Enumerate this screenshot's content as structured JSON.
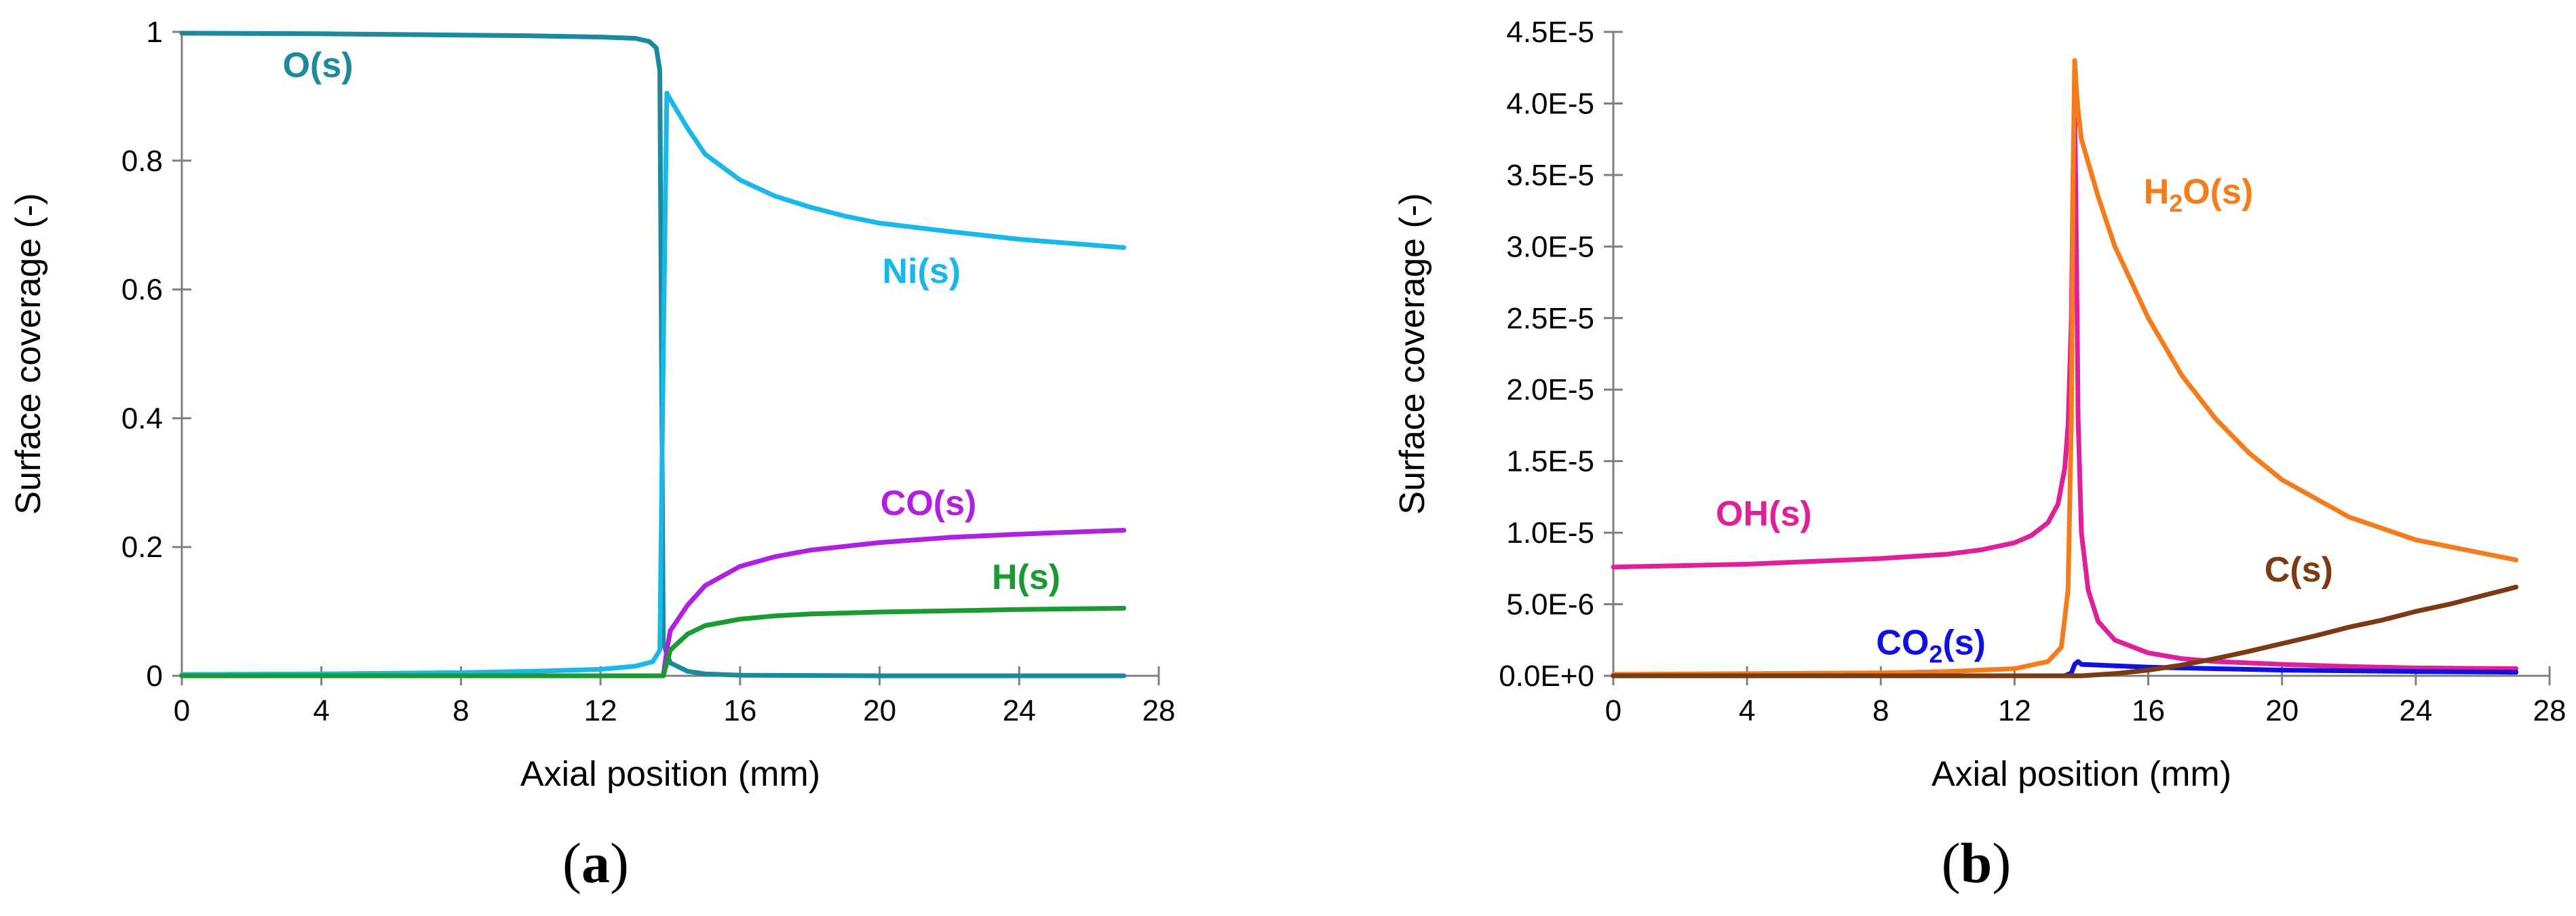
{
  "chart_data": [
    {
      "type": "line",
      "panel": "a",
      "panel_label": "a",
      "xlabel": "Axial position (mm)",
      "ylabel": "Surface coverage (-)",
      "xlim": [
        0,
        28
      ],
      "ylim": [
        0,
        1
      ],
      "xticks": [
        0,
        4,
        8,
        12,
        16,
        20,
        24,
        28
      ],
      "xtick_labels": [
        "0",
        "4",
        "8",
        "12",
        "16",
        "20",
        "24",
        "28"
      ],
      "yticks": [
        0,
        0.2,
        0.4,
        0.6,
        0.8,
        1
      ],
      "ytick_labels": [
        "0",
        "0.2",
        "0.4",
        "0.6",
        "0.8",
        "1"
      ],
      "grid": false,
      "series": [
        {
          "name": "O(s)",
          "color": "#1a8a9c",
          "x": [
            0,
            4,
            8,
            10,
            12,
            13,
            13.4,
            13.6,
            13.7,
            13.75,
            13.8,
            14,
            14.5,
            15,
            16,
            20,
            27
          ],
          "y": [
            0.998,
            0.997,
            0.995,
            0.994,
            0.992,
            0.99,
            0.985,
            0.975,
            0.94,
            0.5,
            0.05,
            0.02,
            0.007,
            0.003,
            0.001,
            0,
            0
          ]
        },
        {
          "name": "Ni(s)",
          "color": "#1ab8e8",
          "x": [
            0,
            4,
            8,
            10,
            12,
            13,
            13.5,
            13.7,
            13.8,
            13.9,
            14,
            14.5,
            15,
            16,
            17,
            18,
            19,
            20,
            22,
            24,
            27
          ],
          "y": [
            0.002,
            0.003,
            0.005,
            0.007,
            0.01,
            0.015,
            0.022,
            0.04,
            0.5,
            0.905,
            0.895,
            0.85,
            0.81,
            0.77,
            0.745,
            0.728,
            0.714,
            0.703,
            0.69,
            0.678,
            0.665
          ]
        },
        {
          "name": "CO(s)",
          "color": "#b020e0",
          "x": [
            0,
            13.6,
            13.8,
            13.9,
            14,
            14.5,
            15,
            16,
            17,
            18,
            20,
            22,
            24,
            27
          ],
          "y": [
            0,
            0,
            0,
            0.04,
            0.07,
            0.11,
            0.14,
            0.17,
            0.185,
            0.195,
            0.207,
            0.215,
            0.22,
            0.226
          ]
        },
        {
          "name": "H(s)",
          "color": "#1a9a30",
          "x": [
            0,
            13.6,
            13.8,
            13.9,
            14,
            14.5,
            15,
            16,
            17,
            18,
            20,
            22,
            24,
            27
          ],
          "y": [
            0,
            0,
            0,
            0.02,
            0.04,
            0.065,
            0.078,
            0.088,
            0.093,
            0.096,
            0.099,
            0.101,
            0.103,
            0.105
          ]
        }
      ],
      "labels": [
        {
          "text": "O(s)",
          "series": "O(s)",
          "x": 3.9,
          "y": 0.93
        },
        {
          "text": "Ni(s)",
          "series": "Ni(s)",
          "x": 21.2,
          "y": 0.61
        },
        {
          "text": "CO(s)",
          "series": "CO(s)",
          "x": 21.4,
          "y": 0.25
        },
        {
          "text": "H(s)",
          "series": "H(s)",
          "x": 24.2,
          "y": 0.135
        }
      ]
    },
    {
      "type": "line",
      "panel": "b",
      "panel_label": "b",
      "xlabel": "Axial position (mm)",
      "ylabel": "Surface coverage (-)",
      "xlim": [
        0,
        28
      ],
      "ylim": [
        0,
        4.5e-05
      ],
      "xticks": [
        0,
        4,
        8,
        12,
        16,
        20,
        24,
        28
      ],
      "xtick_labels": [
        "0",
        "4",
        "8",
        "12",
        "16",
        "20",
        "24",
        "28"
      ],
      "yticks": [
        0,
        5e-06,
        1e-05,
        1.5e-05,
        2e-05,
        2.5e-05,
        3e-05,
        3.5e-05,
        4e-05,
        4.5e-05
      ],
      "ytick_labels": [
        "0.0E+0",
        "5.0E-6",
        "1.0E-5",
        "1.5E-5",
        "2.0E-5",
        "2.5E-5",
        "3.0E-5",
        "3.5E-5",
        "4.0E-5",
        "4.5E-5"
      ],
      "grid": false,
      "series": [
        {
          "name": "OH(s)",
          "color": "#e0209a",
          "x": [
            0,
            4,
            8,
            10,
            11,
            12,
            12.5,
            13,
            13.3,
            13.5,
            13.6,
            13.7,
            13.75,
            13.8,
            13.85,
            13.9,
            14,
            14.2,
            14.5,
            15,
            16,
            17,
            18,
            20,
            22,
            24,
            27
          ],
          "y": [
            7.6e-06,
            7.8e-06,
            8.2e-06,
            8.5e-06,
            8.8e-06,
            9.3e-06,
            9.8e-06,
            1.07e-05,
            1.2e-05,
            1.45e-05,
            1.75e-05,
            2.5e-05,
            3.5e-05,
            4e-05,
            3e-05,
            1.8e-05,
            1e-05,
            6e-06,
            3.8e-06,
            2.5e-06,
            1.6e-06,
            1.2e-06,
            1e-06,
            8e-07,
            6.5e-07,
            5.5e-07,
            5e-07
          ]
        },
        {
          "name": "H2O(s)",
          "color": "#f47c1a",
          "x": [
            0,
            8,
            10,
            12,
            13,
            13.4,
            13.6,
            13.7,
            13.75,
            13.8,
            13.85,
            13.9,
            14,
            14.5,
            15,
            16,
            17,
            18,
            19,
            20,
            22,
            24,
            27
          ],
          "y": [
            1e-07,
            2e-07,
            3e-07,
            5e-07,
            1e-06,
            2e-06,
            6e-06,
            1.8e-05,
            3.5e-05,
            4.3e-05,
            4.1e-05,
            3.95e-05,
            3.75e-05,
            3.35e-05,
            3e-05,
            2.5e-05,
            2.1e-05,
            1.8e-05,
            1.56e-05,
            1.37e-05,
            1.11e-05,
            9.5e-06,
            8.1e-06
          ]
        },
        {
          "name": "CO2(s)",
          "color": "#1010e0",
          "x": [
            0,
            12,
            13.5,
            13.7,
            13.8,
            13.9,
            14,
            15,
            16,
            18,
            20,
            24,
            27
          ],
          "y": [
            0,
            0,
            0,
            2e-07,
            8e-07,
            1e-06,
            8e-07,
            7e-07,
            6e-07,
            5e-07,
            4e-07,
            3e-07,
            2.5e-07
          ]
        },
        {
          "name": "C(s)",
          "color": "#7a3a12",
          "x": [
            0,
            14,
            15,
            16,
            17,
            18,
            19,
            20,
            21,
            22,
            23,
            24,
            25,
            26,
            27
          ],
          "y": [
            0,
            0,
            1.5e-07,
            4e-07,
            7.5e-07,
            1.2e-06,
            1.7e-06,
            2.25e-06,
            2.8e-06,
            3.4e-06,
            3.9e-06,
            4.5e-06,
            5e-06,
            5.6e-06,
            6.2e-06
          ]
        }
      ],
      "labels": [
        {
          "text": "OH(s)",
          "series": "OH(s)",
          "x": 4.5,
          "y": 1.05e-05
        },
        {
          "text": "H",
          "sub": "2",
          "after": "O(s)",
          "series": "H2O(s)",
          "x": 17.5,
          "y": 3.3e-05
        },
        {
          "text": "CO",
          "sub": "2",
          "after": "(s)",
          "series": "CO2(s)",
          "x": 9.5,
          "y": 1.5e-06
        },
        {
          "text": "C(s)",
          "series": "C(s)",
          "x": 20.5,
          "y": 6.6e-06
        }
      ]
    }
  ]
}
